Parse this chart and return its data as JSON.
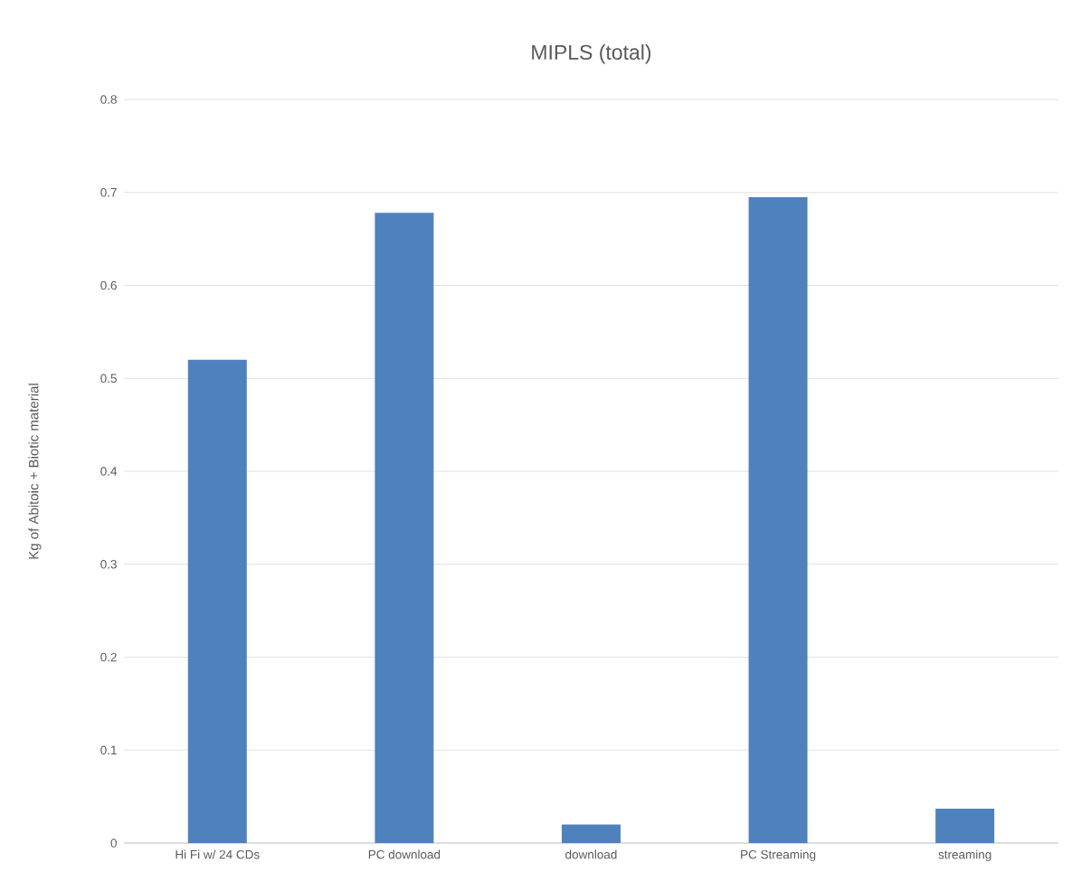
{
  "chart_data": {
    "type": "bar",
    "title": "MIPLS (total)",
    "ylabel": "Kg of Abitoic + Biotic material",
    "categories": [
      "Hi Fi w/ 24 CDs",
      "PC download",
      "download",
      "PC Streaming",
      "streaming"
    ],
    "values": [
      0.52,
      0.678,
      0.02,
      0.695,
      0.037
    ],
    "color": "#4f81bd",
    "ylim": [
      0,
      0.8
    ],
    "yticks": [
      0,
      0.1,
      0.2,
      0.3,
      0.4,
      0.5,
      0.6,
      0.7,
      0.8
    ],
    "grid": "y"
  }
}
